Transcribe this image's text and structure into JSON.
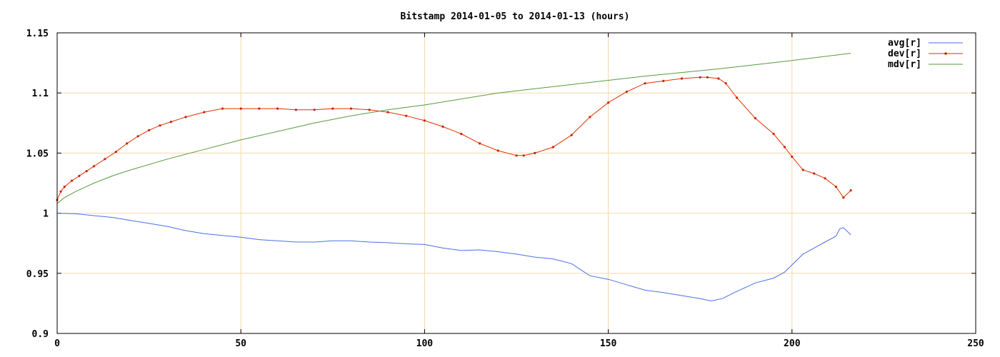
{
  "colors": {
    "grid": "#f5d9a8",
    "frame": "#000000",
    "avg": "#4a6fe8",
    "dev": "#dd3300",
    "dev_marker": "#cc2200",
    "mdv": "#5a9a3a"
  },
  "chart_data": {
    "type": "line",
    "title": "Bitstamp 2014-01-05 to 2014-01-13 (hours)",
    "xlabel": "",
    "ylabel": "",
    "xlim": [
      0,
      250
    ],
    "ylim": [
      0.9,
      1.15
    ],
    "x_ticks": [
      0,
      50,
      100,
      150,
      200,
      250
    ],
    "x_tick_labels": [
      "0",
      "50",
      "100",
      "150",
      "200",
      "250"
    ],
    "y_ticks": [
      0.9,
      0.95,
      1.0,
      1.05,
      1.1,
      1.15
    ],
    "y_tick_labels": [
      "0.9",
      "0.95",
      "1",
      "1.05",
      "1.1",
      "1.15"
    ],
    "grid": true,
    "legend_position": "top-right",
    "series": [
      {
        "name": "avg[r]",
        "style": "line",
        "x": [
          0,
          5,
          10,
          15,
          20,
          25,
          30,
          35,
          40,
          45,
          50,
          55,
          60,
          65,
          70,
          75,
          80,
          85,
          90,
          95,
          100,
          105,
          110,
          115,
          120,
          125,
          130,
          135,
          140,
          145,
          150,
          155,
          160,
          165,
          170,
          175,
          178,
          181,
          185,
          190,
          195,
          198,
          200,
          203,
          206,
          209,
          212,
          213,
          214,
          216
        ],
        "y": [
          1.0,
          0.9995,
          0.998,
          0.9965,
          0.994,
          0.9915,
          0.989,
          0.9855,
          0.983,
          0.9815,
          0.98,
          0.978,
          0.977,
          0.976,
          0.976,
          0.977,
          0.977,
          0.976,
          0.9755,
          0.9745,
          0.974,
          0.971,
          0.969,
          0.9695,
          0.968,
          0.966,
          0.9635,
          0.962,
          0.958,
          0.948,
          0.945,
          0.9405,
          0.936,
          0.934,
          0.9315,
          0.929,
          0.927,
          0.929,
          0.935,
          0.942,
          0.946,
          0.951,
          0.957,
          0.966,
          0.971,
          0.976,
          0.981,
          0.987,
          0.988,
          0.982
        ]
      },
      {
        "name": "dev[r]",
        "style": "linespoints",
        "x": [
          0,
          1,
          2,
          4,
          6,
          8,
          10,
          13,
          16,
          19,
          22,
          25,
          28,
          31,
          35,
          40,
          45,
          50,
          55,
          60,
          65,
          70,
          75,
          80,
          85,
          90,
          95,
          100,
          105,
          110,
          115,
          120,
          125,
          127,
          130,
          135,
          140,
          145,
          150,
          155,
          160,
          165,
          170,
          175,
          177,
          180,
          182,
          185,
          190,
          195,
          198,
          200,
          203,
          206,
          209,
          212,
          214,
          216
        ],
        "y": [
          1.011,
          1.018,
          1.022,
          1.027,
          1.031,
          1.035,
          1.039,
          1.045,
          1.051,
          1.058,
          1.064,
          1.069,
          1.073,
          1.076,
          1.08,
          1.084,
          1.087,
          1.087,
          1.087,
          1.087,
          1.086,
          1.086,
          1.087,
          1.087,
          1.086,
          1.084,
          1.081,
          1.077,
          1.072,
          1.066,
          1.058,
          1.052,
          1.048,
          1.048,
          1.05,
          1.055,
          1.065,
          1.08,
          1.092,
          1.101,
          1.108,
          1.11,
          1.112,
          1.113,
          1.113,
          1.112,
          1.108,
          1.096,
          1.079,
          1.066,
          1.055,
          1.047,
          1.036,
          1.033,
          1.029,
          1.022,
          1.013,
          1.019
        ]
      },
      {
        "name": "mdv[r]",
        "style": "line",
        "x": [
          0,
          2,
          5,
          10,
          15,
          20,
          30,
          40,
          50,
          60,
          70,
          80,
          90,
          100,
          120,
          140,
          160,
          180,
          200,
          216
        ],
        "y": [
          1.008,
          1.013,
          1.018,
          1.025,
          1.031,
          1.036,
          1.045,
          1.053,
          1.061,
          1.068,
          1.075,
          1.081,
          1.086,
          1.09,
          1.1,
          1.107,
          1.114,
          1.12,
          1.127,
          1.133
        ]
      }
    ]
  }
}
